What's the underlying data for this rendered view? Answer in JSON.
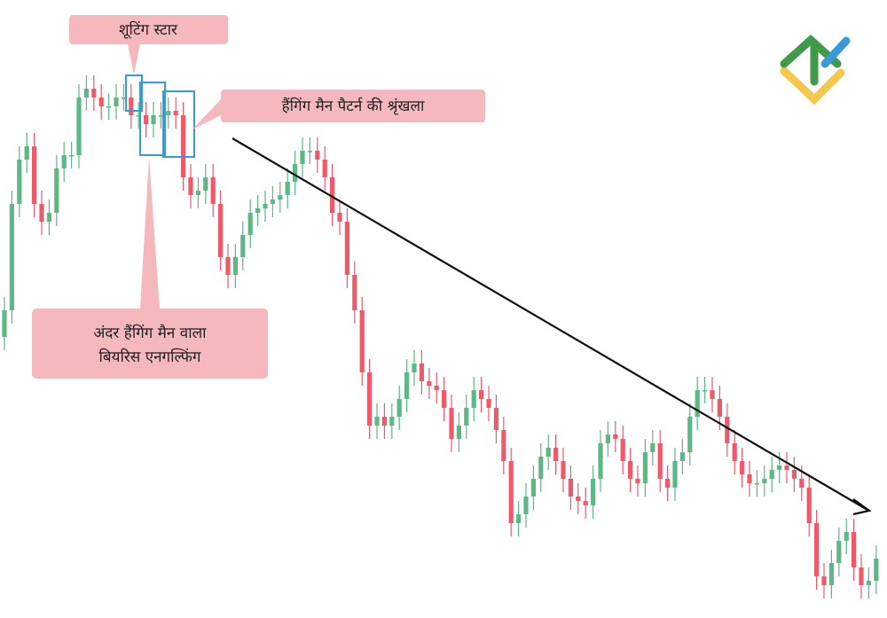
{
  "chart_data": {
    "type": "candlestick",
    "up_color": "#5cb885",
    "down_color": "#ef5a6a",
    "ylim": [
      0,
      700
    ],
    "open": [
      320,
      350,
      470,
      520,
      535,
      470,
      450,
      460,
      510,
      525,
      525,
      590,
      600,
      590,
      580,
      580,
      590,
      590,
      570,
      570,
      560,
      570,
      570,
      575,
      570,
      500,
      480,
      485,
      500,
      470,
      410,
      390,
      410,
      435,
      460,
      465,
      470,
      475,
      480,
      495,
      515,
      530,
      530,
      520,
      500,
      460,
      450,
      390,
      350,
      280,
      220,
      230,
      220,
      230,
      250,
      280,
      290,
      270,
      265,
      260,
      240,
      205,
      220,
      240,
      260,
      250,
      240,
      215,
      180,
      110,
      120,
      140,
      160,
      185,
      195,
      180,
      160,
      140,
      135,
      130,
      160,
      200,
      210,
      205,
      180,
      160,
      155,
      190,
      200,
      160,
      150,
      180,
      190,
      230,
      260,
      260,
      250,
      230,
      200,
      180,
      165,
      155,
      155,
      160,
      170,
      175,
      170,
      160,
      150,
      110,
      50,
      40,
      65,
      90,
      100,
      60,
      40,
      45
    ],
    "high": [
      365,
      485,
      535,
      550,
      550,
      485,
      475,
      525,
      540,
      540,
      605,
      615,
      615,
      605,
      595,
      605,
      605,
      605,
      585,
      585,
      585,
      585,
      590,
      590,
      585,
      515,
      500,
      515,
      515,
      485,
      425,
      425,
      450,
      475,
      480,
      485,
      490,
      495,
      510,
      530,
      545,
      545,
      545,
      535,
      515,
      475,
      465,
      405,
      365,
      295,
      245,
      245,
      245,
      265,
      295,
      305,
      305,
      285,
      280,
      275,
      255,
      235,
      255,
      275,
      275,
      265,
      255,
      230,
      195,
      135,
      155,
      175,
      200,
      210,
      210,
      195,
      175,
      155,
      150,
      175,
      215,
      225,
      225,
      220,
      195,
      175,
      205,
      215,
      215,
      175,
      195,
      205,
      245,
      275,
      275,
      275,
      265,
      245,
      215,
      195,
      180,
      170,
      175,
      185,
      190,
      190,
      185,
      175,
      165,
      125,
      65,
      80,
      105,
      115,
      115,
      75,
      60,
      85
    ],
    "low": [
      305,
      335,
      455,
      505,
      455,
      435,
      435,
      445,
      495,
      510,
      510,
      575,
      575,
      565,
      565,
      565,
      575,
      555,
      555,
      545,
      545,
      555,
      555,
      555,
      485,
      465,
      465,
      470,
      455,
      395,
      375,
      375,
      395,
      420,
      445,
      450,
      455,
      460,
      465,
      480,
      500,
      515,
      505,
      485,
      445,
      435,
      375,
      335,
      265,
      205,
      205,
      205,
      205,
      215,
      235,
      265,
      255,
      250,
      245,
      225,
      190,
      190,
      205,
      225,
      235,
      225,
      200,
      165,
      95,
      95,
      105,
      125,
      145,
      170,
      165,
      145,
      125,
      120,
      115,
      115,
      145,
      185,
      190,
      165,
      145,
      140,
      140,
      175,
      145,
      135,
      135,
      165,
      175,
      215,
      245,
      235,
      215,
      185,
      165,
      150,
      140,
      140,
      140,
      145,
      155,
      155,
      145,
      135,
      95,
      35,
      25,
      25,
      50,
      75,
      45,
      25,
      25,
      30
    ],
    "close": [
      350,
      470,
      520,
      535,
      470,
      450,
      460,
      510,
      525,
      525,
      590,
      600,
      590,
      580,
      580,
      590,
      590,
      570,
      570,
      560,
      570,
      570,
      575,
      570,
      500,
      480,
      485,
      500,
      470,
      410,
      390,
      410,
      435,
      460,
      465,
      470,
      475,
      480,
      495,
      515,
      530,
      530,
      520,
      500,
      460,
      450,
      390,
      350,
      280,
      220,
      230,
      220,
      230,
      250,
      280,
      290,
      270,
      265,
      260,
      240,
      205,
      220,
      240,
      260,
      250,
      240,
      215,
      180,
      110,
      120,
      140,
      160,
      185,
      195,
      180,
      160,
      140,
      135,
      130,
      160,
      200,
      210,
      205,
      180,
      160,
      155,
      190,
      200,
      160,
      150,
      180,
      190,
      230,
      260,
      260,
      250,
      230,
      200,
      180,
      165,
      155,
      155,
      160,
      170,
      175,
      170,
      160,
      150,
      110,
      50,
      40,
      65,
      90,
      100,
      60,
      40,
      45,
      70
    ],
    "annotations": [
      {
        "text": "शूटिंग स्टार"
      },
      {
        "text": "हैंगिंग मैन पैटर्न की श्रृंखला"
      },
      {
        "lines": [
          "अंदर हैंगिंग मैन वाला",
          "बियरिस एनगल्फिंग"
        ]
      }
    ]
  }
}
